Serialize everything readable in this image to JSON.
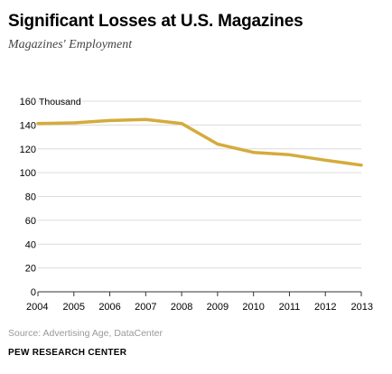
{
  "header": {
    "title": "Significant Losses at U.S. Magazines",
    "subtitle": "Magazines' Employment"
  },
  "footer": {
    "source": "Source: Advertising Age, DataCenter",
    "brand": "PEW RESEARCH CENTER"
  },
  "colors": {
    "line": "#d4ab3c",
    "grid": "#dcdcdc",
    "axis": "#333333"
  },
  "chart_data": {
    "type": "line",
    "title": "Significant Losses at U.S. Magazines",
    "subtitle": "Magazines' Employment",
    "unit_label": "Thousand",
    "x": [
      "2004",
      "2005",
      "2006",
      "2007",
      "2008",
      "2009",
      "2010",
      "2011",
      "2012",
      "2013"
    ],
    "series": [
      {
        "values": [
          141.3,
          141.8,
          143.8,
          144.6,
          141.3,
          124.0,
          117.0,
          115.0,
          110.5,
          106.3
        ]
      }
    ],
    "yticks": [
      0,
      20,
      40,
      60,
      80,
      100,
      120,
      140,
      160
    ],
    "ylim": [
      0,
      160
    ],
    "grid": true,
    "legend": "none"
  }
}
